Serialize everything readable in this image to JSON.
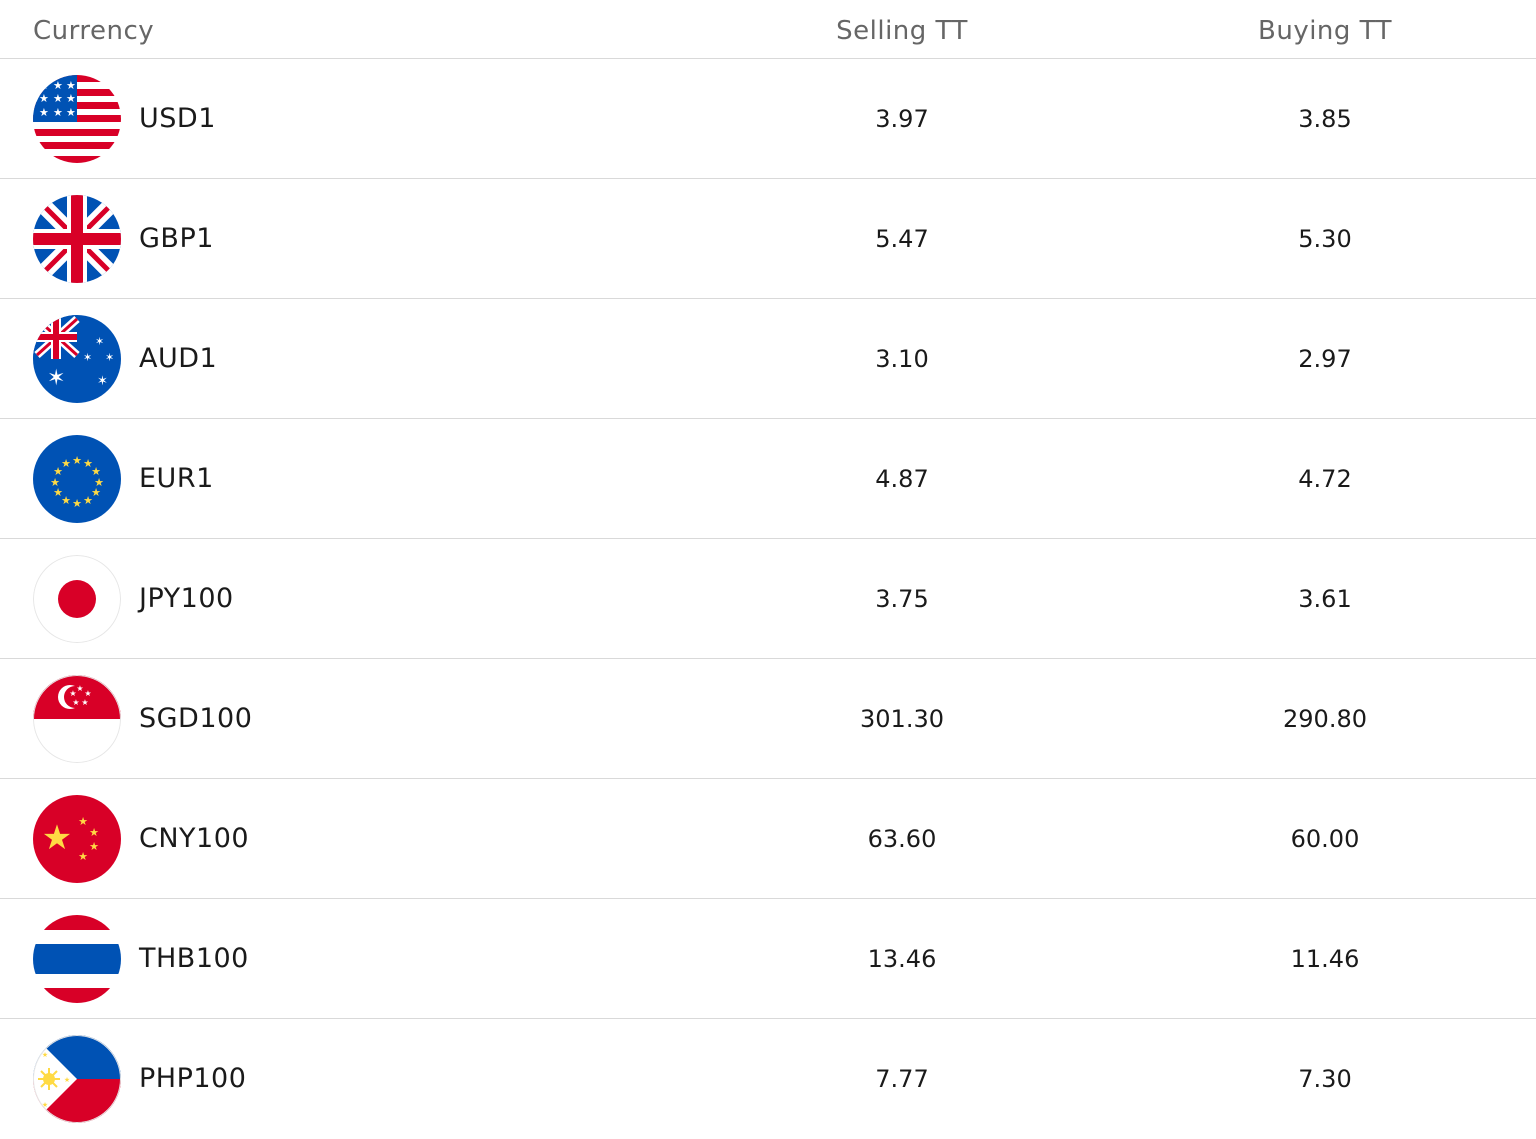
{
  "table": {
    "headers": {
      "currency": "Currency",
      "selling": "Selling TT",
      "buying": "Buying TT"
    },
    "rows": [
      {
        "flag": "us-flag-icon",
        "code": "USD1",
        "selling": "3.97",
        "buying": "3.85"
      },
      {
        "flag": "uk-flag-icon",
        "code": "GBP1",
        "selling": "5.47",
        "buying": "5.30"
      },
      {
        "flag": "australia-flag-icon",
        "code": "AUD1",
        "selling": "3.10",
        "buying": "2.97"
      },
      {
        "flag": "eu-flag-icon",
        "code": "EUR1",
        "selling": "4.87",
        "buying": "4.72"
      },
      {
        "flag": "japan-flag-icon",
        "code": "JPY100",
        "selling": "3.75",
        "buying": "3.61"
      },
      {
        "flag": "singapore-flag-icon",
        "code": "SGD100",
        "selling": "301.30",
        "buying": "290.80"
      },
      {
        "flag": "china-flag-icon",
        "code": "CNY100",
        "selling": "63.60",
        "buying": "60.00"
      },
      {
        "flag": "thailand-flag-icon",
        "code": "THB100",
        "selling": "13.46",
        "buying": "11.46"
      },
      {
        "flag": "philippines-flag-icon",
        "code": "PHP100",
        "selling": "7.77",
        "buying": "7.30"
      }
    ]
  },
  "colors": {
    "header_text": "#666666",
    "row_text": "#1a1a1a",
    "divider": "#d9d9d9"
  }
}
